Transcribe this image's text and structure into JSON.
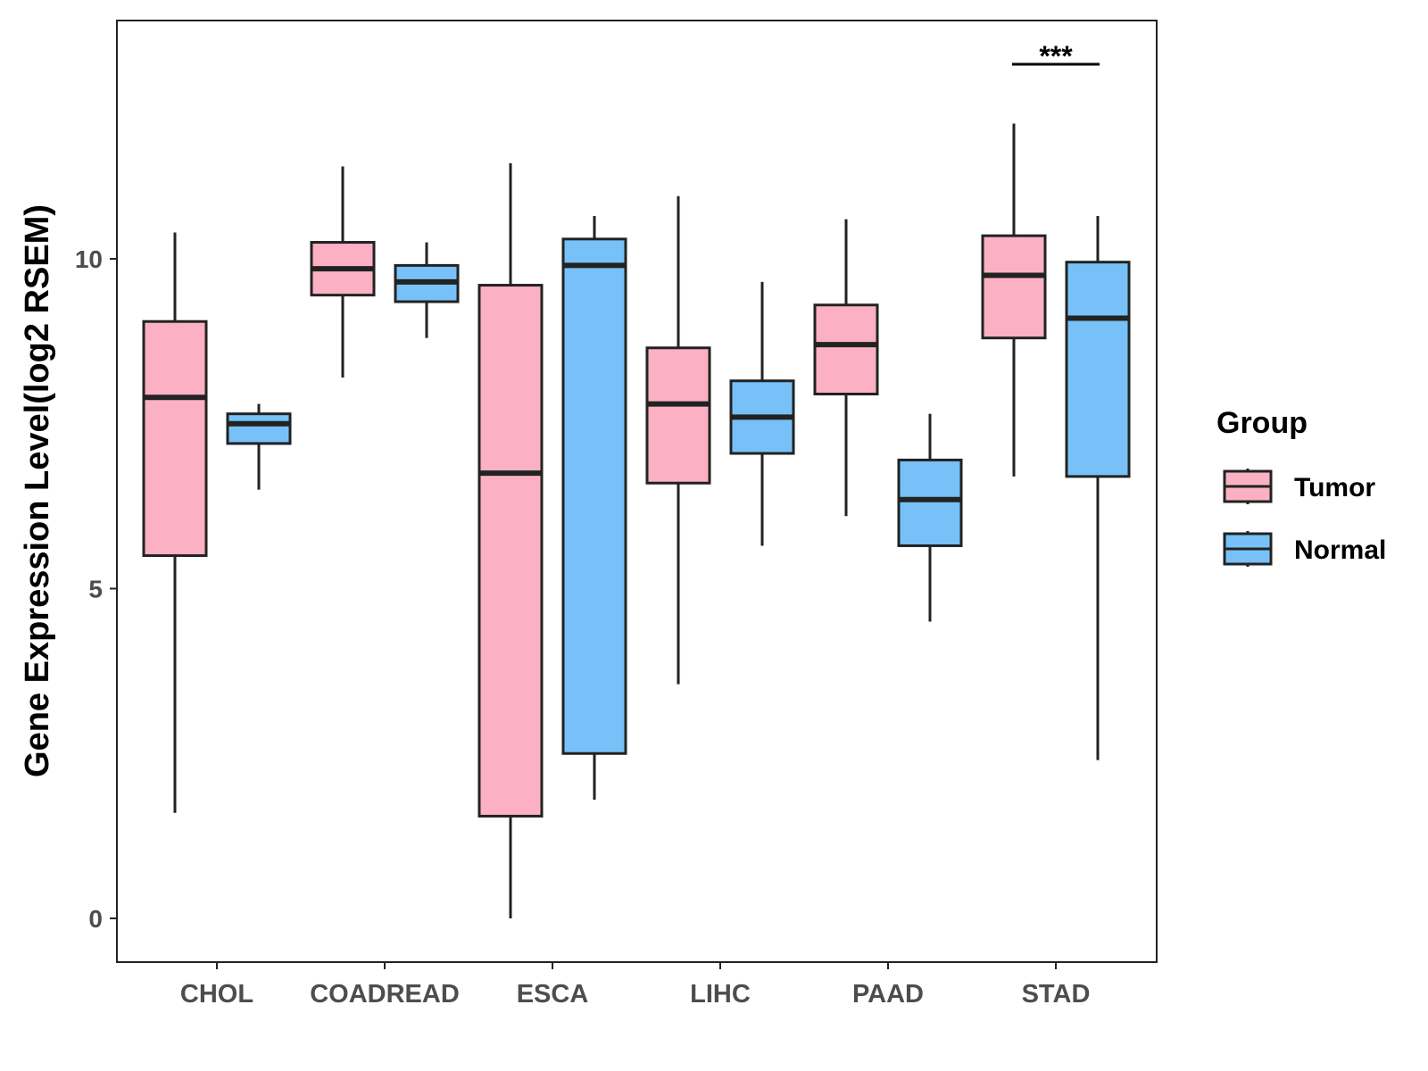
{
  "chart_data": {
    "type": "boxplot",
    "title": "",
    "xlabel": "",
    "ylabel": "Gene Expression Level(log2 RSEM)",
    "ylim": [
      -0.6,
      13.7
    ],
    "yticks": [
      0,
      5,
      10
    ],
    "categories": [
      "CHOL",
      "COADREAD",
      "ESCA",
      "LIHC",
      "PAAD",
      "STAD"
    ],
    "legend": {
      "title": "Group",
      "position": "right",
      "entries": [
        {
          "name": "Tumor",
          "color": "#FBB1C3"
        },
        {
          "name": "Normal",
          "color": "#77C1F8"
        }
      ]
    },
    "series": [
      {
        "name": "Tumor",
        "color": "#FBB1C3",
        "boxes": [
          {
            "category": "CHOL",
            "min": 1.6,
            "q1": 5.5,
            "median": 7.9,
            "q3": 9.05,
            "max": 10.4
          },
          {
            "category": "COADREAD",
            "min": 8.2,
            "q1": 9.45,
            "median": 9.85,
            "q3": 10.25,
            "max": 11.4
          },
          {
            "category": "ESCA",
            "min": 0.0,
            "q1": 1.55,
            "median": 6.75,
            "q3": 9.6,
            "max": 11.45
          },
          {
            "category": "LIHC",
            "min": 3.55,
            "q1": 6.6,
            "median": 7.8,
            "q3": 8.65,
            "max": 10.95
          },
          {
            "category": "PAAD",
            "min": 6.1,
            "q1": 7.95,
            "median": 8.7,
            "q3": 9.3,
            "max": 10.6
          },
          {
            "category": "STAD",
            "min": 6.7,
            "q1": 8.8,
            "median": 9.75,
            "q3": 10.35,
            "max": 12.05
          }
        ]
      },
      {
        "name": "Normal",
        "color": "#77C1F8",
        "boxes": [
          {
            "category": "CHOL",
            "min": 6.5,
            "q1": 7.2,
            "median": 7.5,
            "q3": 7.65,
            "max": 7.8
          },
          {
            "category": "COADREAD",
            "min": 8.8,
            "q1": 9.35,
            "median": 9.65,
            "q3": 9.9,
            "max": 10.25
          },
          {
            "category": "ESCA",
            "min": 1.8,
            "q1": 2.5,
            "median": 9.9,
            "q3": 10.3,
            "max": 10.65
          },
          {
            "category": "LIHC",
            "min": 5.65,
            "q1": 7.05,
            "median": 7.6,
            "q3": 8.15,
            "max": 9.65
          },
          {
            "category": "PAAD",
            "min": 4.5,
            "q1": 5.65,
            "median": 6.35,
            "q3": 6.95,
            "max": 7.65
          },
          {
            "category": "STAD",
            "min": 2.4,
            "q1": 6.7,
            "median": 9.1,
            "q3": 9.95,
            "max": 10.65
          }
        ]
      }
    ],
    "annotations": [
      {
        "category": "STAD",
        "text": "***",
        "y": 12.95
      }
    ]
  }
}
